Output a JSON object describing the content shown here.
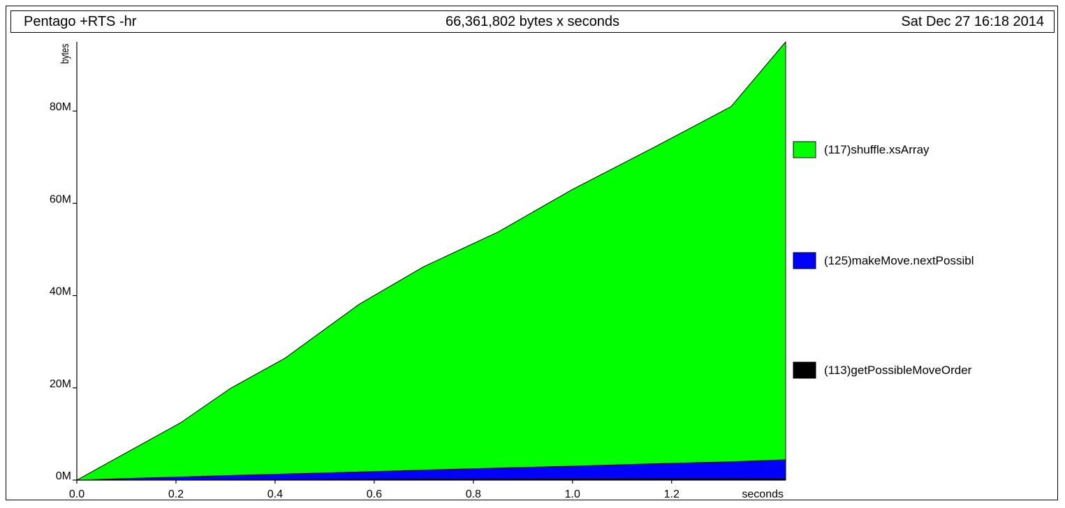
{
  "header": {
    "program": "Pentago +RTS -hr",
    "total": "66,361,802 bytes x seconds",
    "date": "Sat Dec 27 16:18 2014"
  },
  "chart_data": {
    "type": "area",
    "stacked": true,
    "xlabel": "seconds",
    "ylabel": "bytes",
    "xlim": [
      0,
      1.43
    ],
    "ylim": [
      0,
      95
    ],
    "x_ticks": [
      "0.0",
      "0.2",
      "0.4",
      "0.6",
      "0.8",
      "1.0",
      "1.2"
    ],
    "y_ticks": [
      "0M",
      "20M",
      "40M",
      "60M",
      "80M"
    ],
    "x": [
      0.0,
      0.1,
      0.21,
      0.31,
      0.42,
      0.57,
      0.7,
      0.85,
      1.0,
      1.17,
      1.32,
      1.43
    ],
    "series": [
      {
        "name": "(113)getPossibleMoveOrder",
        "color": "#000000",
        "values": [
          0,
          0.05,
          0.08,
          0.1,
          0.12,
          0.15,
          0.18,
          0.2,
          0.22,
          0.25,
          0.27,
          0.3
        ]
      },
      {
        "name": "(125)makeMove.nextPossibl",
        "color": "#0000ff",
        "values": [
          0,
          0.3,
          0.6,
          0.9,
          1.2,
          1.6,
          2.0,
          2.4,
          2.8,
          3.3,
          3.7,
          4.1
        ]
      },
      {
        "name": "(117)shuffle.xsArray",
        "color": "#00ff00",
        "values": [
          0,
          5.6,
          11.8,
          18.9,
          25.1,
          36.4,
          44.1,
          51.2,
          60.0,
          68.9,
          77.0,
          90.6
        ]
      }
    ],
    "legend_position": "right",
    "grid": false
  }
}
